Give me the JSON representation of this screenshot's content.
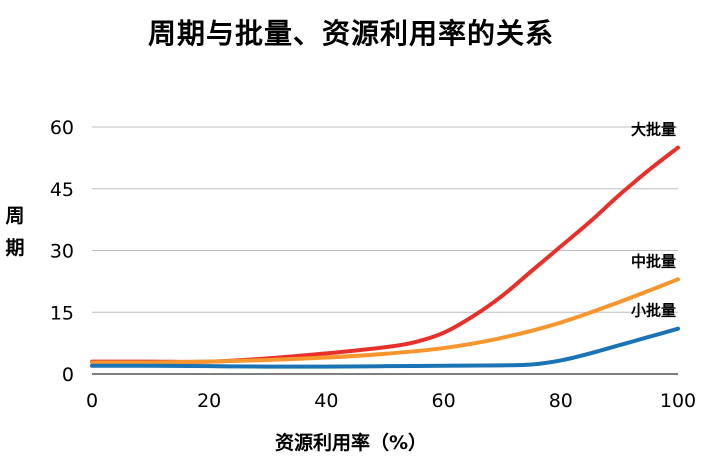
{
  "chart_data": {
    "type": "line",
    "title": "周期与批量、资源利用率的关系",
    "xlabel": "资源利用率（%）",
    "ylabel": "周期",
    "xlim": [
      0,
      100
    ],
    "ylim": [
      0,
      60
    ],
    "xticks": [
      0,
      20,
      40,
      60,
      80,
      100
    ],
    "yticks": [
      0,
      15,
      30,
      45,
      60
    ],
    "grid": "horizontal",
    "series": [
      {
        "name": "大批量",
        "color": "#e8302a",
        "x": [
          0,
          10,
          20,
          30,
          40,
          50,
          55,
          60,
          65,
          70,
          75,
          80,
          85,
          90,
          95,
          100
        ],
        "y": [
          3,
          3,
          3,
          3.8,
          5,
          6.5,
          7.7,
          10,
          14,
          19,
          25,
          31,
          37,
          43.5,
          49.5,
          55
        ]
      },
      {
        "name": "中批量",
        "color": "#f7962e",
        "x": [
          0,
          10,
          20,
          30,
          40,
          50,
          60,
          70,
          80,
          90,
          100
        ],
        "y": [
          2.8,
          2.8,
          3,
          3.4,
          4,
          4.9,
          6.3,
          8.8,
          12.5,
          17.5,
          23
        ]
      },
      {
        "name": "小批量",
        "color": "#1a73b4",
        "x": [
          0,
          10,
          20,
          30,
          40,
          50,
          60,
          70,
          75,
          80,
          85,
          90,
          95,
          100
        ],
        "y": [
          2,
          2,
          1.9,
          1.8,
          1.8,
          1.9,
          2,
          2.1,
          2.3,
          3.3,
          5,
          7,
          9,
          11
        ]
      }
    ]
  }
}
